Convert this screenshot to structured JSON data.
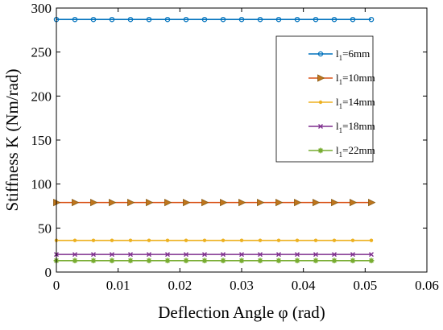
{
  "chart_data": {
    "type": "line",
    "xlabel": "Deflection Angle φ (rad)",
    "ylabel": "Stiffness K (Nm/rad)",
    "xlim": [
      0,
      0.06
    ],
    "ylim": [
      0,
      300
    ],
    "x_ticks": [
      "0",
      "0.01",
      "0.02",
      "0.03",
      "0.04",
      "0.05",
      "0.06"
    ],
    "y_ticks": [
      "0",
      "50",
      "100",
      "150",
      "200",
      "250",
      "300"
    ],
    "grid": false,
    "legend_position": "upper-right",
    "x": [
      0,
      0.003,
      0.006,
      0.009,
      0.012,
      0.015,
      0.018,
      0.021,
      0.024,
      0.027,
      0.03,
      0.033,
      0.036,
      0.039,
      0.042,
      0.045,
      0.048,
      0.051
    ],
    "series": [
      {
        "name": "l1=6mm",
        "legend_base": "l",
        "legend_sub": "1",
        "legend_rest": "=6mm",
        "color": "#0072BD",
        "marker": "circle",
        "values": [
          287,
          287,
          287,
          287,
          287,
          287,
          287,
          287,
          287,
          287,
          287,
          287,
          287,
          287,
          287,
          287,
          287,
          287
        ]
      },
      {
        "name": "l1=10mm",
        "legend_base": "l",
        "legend_sub": "1",
        "legend_rest": "=10mm",
        "color": "#D95319",
        "marker": "triangle",
        "values": [
          79,
          79,
          79,
          79,
          79,
          79,
          79,
          79,
          79,
          79,
          79,
          79,
          79,
          79,
          79,
          79,
          79,
          79
        ]
      },
      {
        "name": "l1=14mm",
        "legend_base": "l",
        "legend_sub": "1",
        "legend_rest": "=14mm",
        "color": "#EDB120",
        "marker": "dot",
        "values": [
          36,
          36,
          36,
          36,
          36,
          36,
          36,
          36,
          36,
          36,
          36,
          36,
          36,
          36,
          36,
          36,
          36,
          36
        ]
      },
      {
        "name": "l1=18mm",
        "legend_base": "l",
        "legend_sub": "1",
        "legend_rest": "=18mm",
        "color": "#7E2F8E",
        "marker": "x",
        "values": [
          20,
          20,
          20,
          20,
          20,
          20,
          20,
          20,
          20,
          20,
          20,
          20,
          20,
          20,
          20,
          20,
          20,
          20
        ]
      },
      {
        "name": "l1=22mm",
        "legend_base": "l",
        "legend_sub": "1",
        "legend_rest": "=22mm",
        "color": "#77AC30",
        "marker": "star",
        "values": [
          13,
          13,
          13,
          13,
          13,
          13,
          13,
          13,
          13,
          13,
          13,
          13,
          13,
          13,
          13,
          13,
          13,
          13
        ]
      }
    ]
  }
}
